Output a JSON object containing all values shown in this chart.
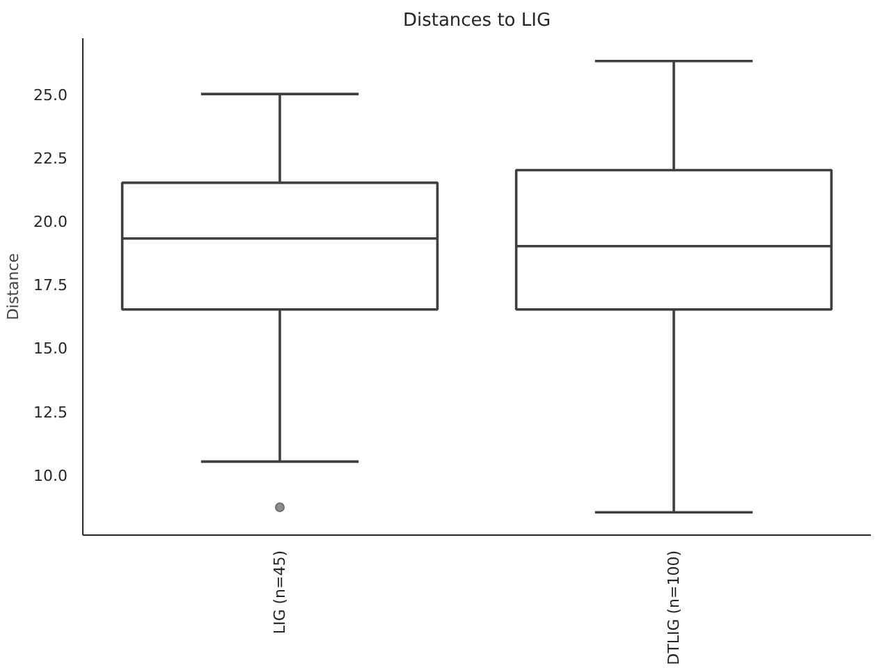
{
  "chart_data": {
    "type": "box",
    "title": "Distances to LIG",
    "ylabel": "Distance",
    "categories": [
      "LIG (n=45)",
      "DTLIG (n=100)"
    ],
    "boxes": [
      {
        "low": 10.5,
        "q1": 16.5,
        "median": 19.3,
        "q3": 21.5,
        "high": 25.0,
        "outliers": [
          8.7
        ]
      },
      {
        "low": 8.5,
        "q1": 16.5,
        "median": 19.0,
        "q3": 22.0,
        "high": 26.3
      }
    ],
    "color": "#3f3f3f",
    "ylim": [
      7.6,
      27.2
    ],
    "yticks": [
      {
        "value": 10,
        "label": "10.0"
      },
      {
        "value": 12.5,
        "label": "12.5"
      },
      {
        "value": 15,
        "label": "15.0"
      },
      {
        "value": 17.5,
        "label": "17.5"
      },
      {
        "value": 20,
        "label": "20.0"
      },
      {
        "value": 22.5,
        "label": "22.5"
      },
      {
        "value": 25,
        "label": "25.0"
      }
    ],
    "grid": false
  }
}
